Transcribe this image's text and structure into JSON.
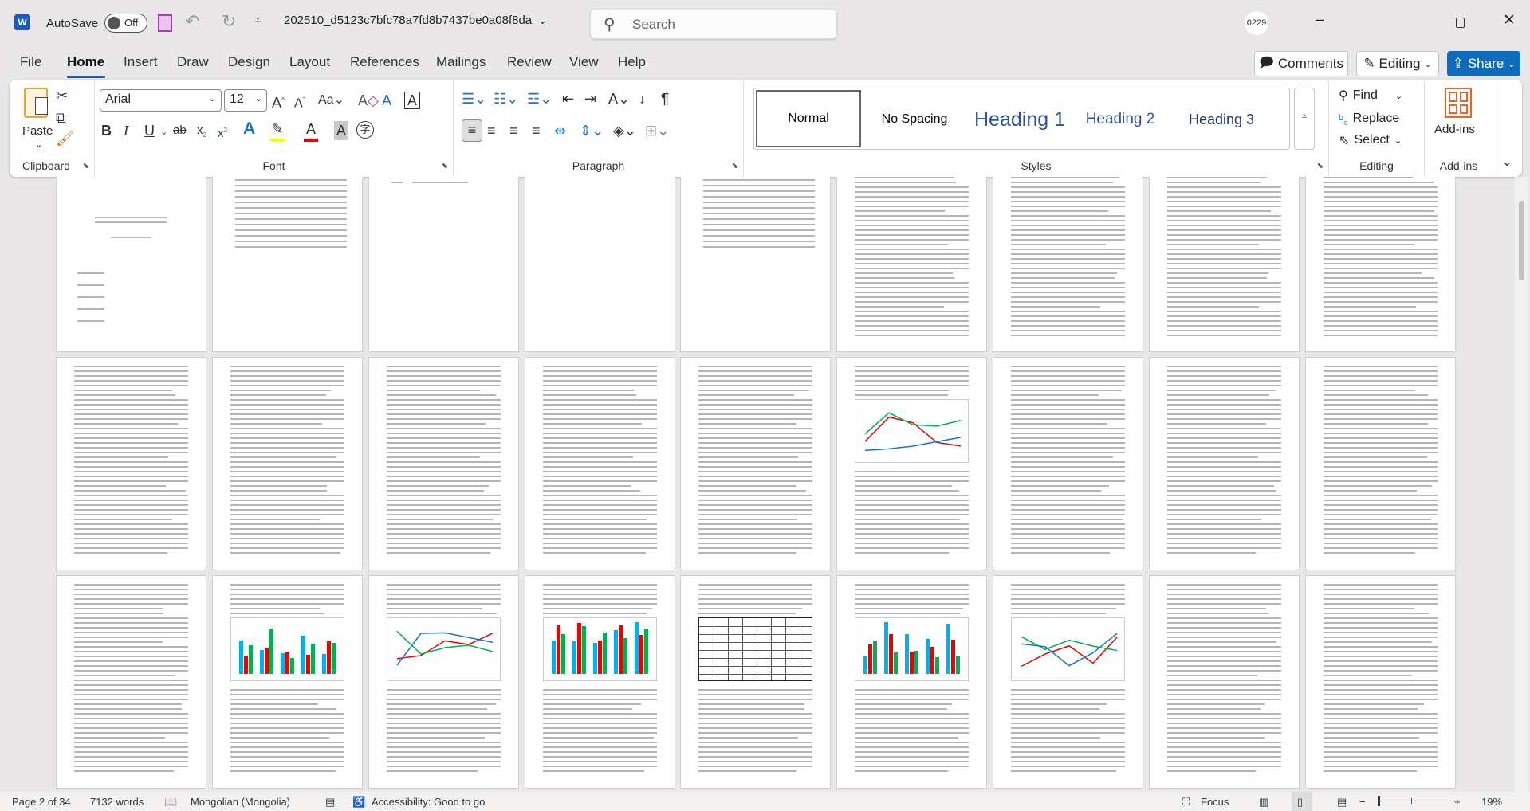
{
  "titlebar": {
    "app_icon": "word-icon",
    "autosave_label": "AutoSave",
    "autosave_state": "Off",
    "doc_title": "202510_d5123c7bfc78a7fd8b7437be0a08f8da",
    "search_placeholder": "Search",
    "account": "0229"
  },
  "tabs": [
    "File",
    "Home",
    "Insert",
    "Draw",
    "Design",
    "Layout",
    "References",
    "Mailings",
    "Review",
    "View",
    "Help"
  ],
  "active_tab": "Home",
  "actions": {
    "comments": "Comments",
    "editing": "Editing",
    "share": "Share"
  },
  "ribbon": {
    "clipboard": {
      "label": "Clipboard",
      "paste": "Paste"
    },
    "font": {
      "label": "Font",
      "font_name": "Arial",
      "font_size": "12"
    },
    "paragraph": {
      "label": "Paragraph"
    },
    "styles": {
      "label": "Styles",
      "items": [
        "Normal",
        "No Spacing",
        "Heading 1",
        "Heading 2",
        "Heading 3"
      ],
      "selected": "Normal"
    },
    "editing": {
      "label": "Editing",
      "find": "Find",
      "replace": "Replace",
      "select": "Select"
    },
    "addins": {
      "label": "Add-ins",
      "button": "Add-ins"
    }
  },
  "status": {
    "page": "Page 2 of 34",
    "words": "7132 words",
    "language": "Mongolian (Mongolia)",
    "accessibility": "Accessibility: Good to go",
    "focus": "Focus",
    "zoom": "19%"
  },
  "colors": {
    "accent": "#185abd",
    "share": "#0f6cbd",
    "heading": "#2f5496"
  }
}
